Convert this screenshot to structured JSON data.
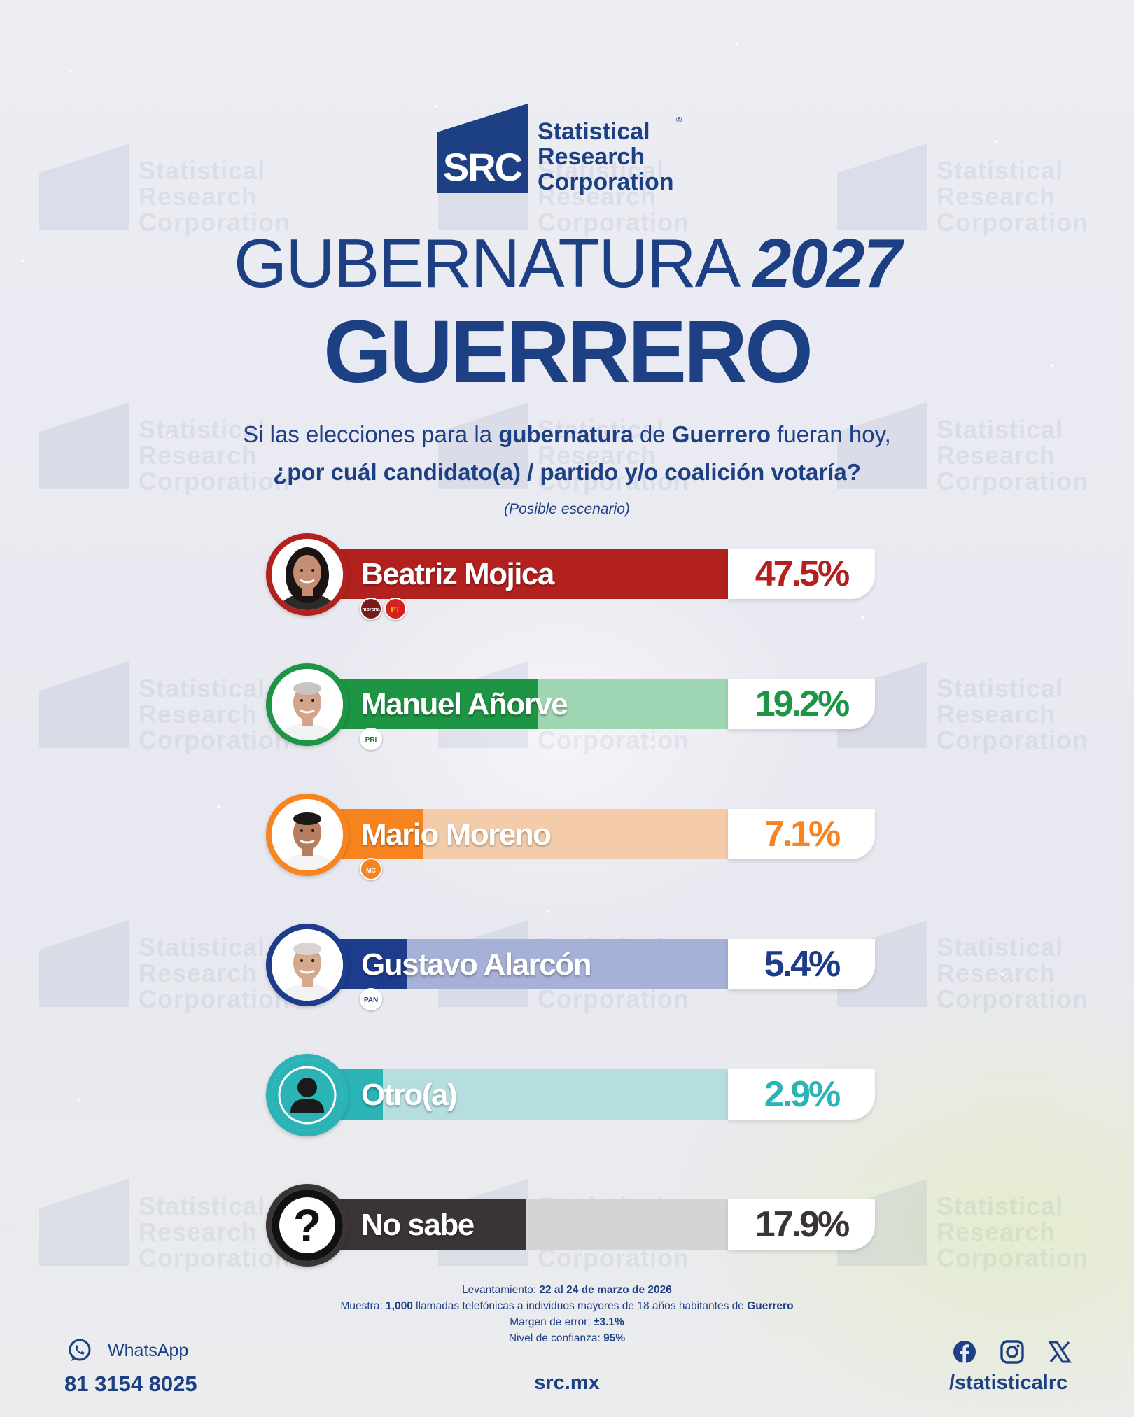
{
  "brand": {
    "logo_abbr": "SRC",
    "logo_lines": [
      "Statistical",
      "Research",
      "Corporation"
    ],
    "registered": "®"
  },
  "title": {
    "line1_light": "GUBERNATURA",
    "line1_year": "2027",
    "line2": "GUERRERO"
  },
  "question": {
    "part1": "Si las elecciones para la ",
    "bold1": "gubernatura",
    "part2": " de ",
    "bold2": "Guerrero",
    "part3": " fueran hoy,",
    "line2": "¿por cuál candidato(a) / partido y/o coalición votaría?",
    "note": "(Posible escenario)"
  },
  "chart_data": {
    "type": "bar",
    "orientation": "horizontal",
    "categories": [
      "Beatriz Mojica",
      "Manuel Añorve",
      "Mario Moreno",
      "Gustavo Alarcón",
      "Otro(a)",
      "No sabe"
    ],
    "values": [
      47.5,
      19.2,
      7.1,
      5.4,
      2.9,
      17.9
    ],
    "value_labels": [
      "47.5%",
      "19.2%",
      "7.1%",
      "5.4%",
      "2.9%",
      "17.9%"
    ],
    "unit": "%",
    "xlim": [
      0,
      50
    ],
    "colors": [
      "#b3211e",
      "#1d9544",
      "#f7841f",
      "#1e3c8c",
      "#2bb3b5",
      "#3b3434"
    ],
    "light_colors": [
      "#d9a9a8",
      "#9fd6b4",
      "#f4ccaa",
      "#a6b1d7",
      "#b5dee0",
      "#d6d3d5"
    ],
    "parties": [
      [
        "morena",
        "PT"
      ],
      [
        "PRI"
      ],
      [
        "MC"
      ],
      [
        "PAN"
      ],
      [],
      []
    ]
  },
  "footnote": {
    "survey_label": "Levantamiento: ",
    "survey_value": "22 al 24 de marzo de 2026",
    "sample_label": "Muestra: ",
    "sample_n": "1,000",
    "sample_text": " llamadas telefónicas a individuos mayores de 18 años habitantes de ",
    "sample_place": "Guerrero",
    "error_label": "Margen de error: ",
    "error_value": "±3.1%",
    "conf_label": "Nivel de confianza: ",
    "conf_value": "95%"
  },
  "contact": {
    "whatsapp_label": "WhatsApp",
    "phone": "81 3154 8025",
    "website": "src.mx",
    "handle": "/statisticalrc",
    "icons": [
      "whatsapp-icon",
      "facebook-icon",
      "instagram-icon",
      "x-icon"
    ]
  }
}
